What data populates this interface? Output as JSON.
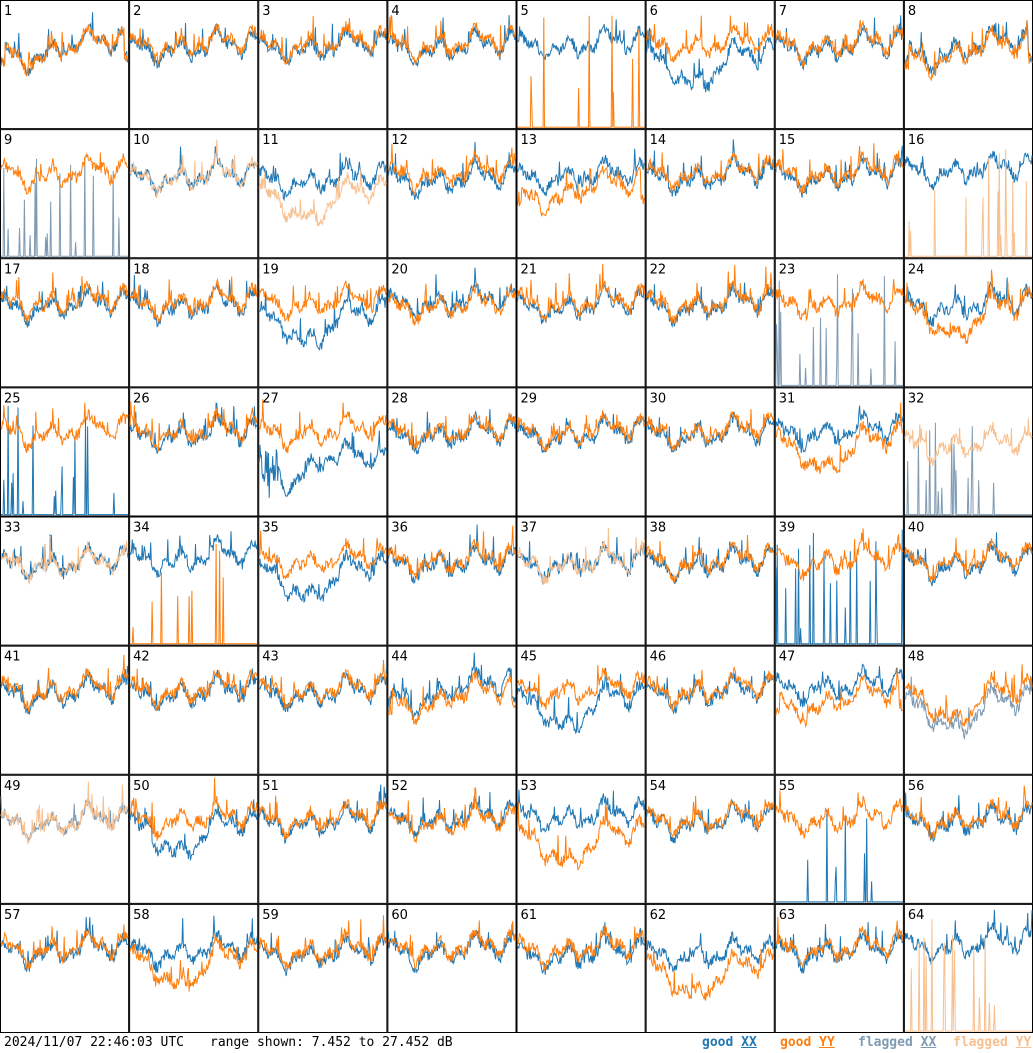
{
  "footer": {
    "timestamp": "2024/11/07 22:46:03 UTC",
    "range_text": "range shown: 7.452 to 27.452 dB"
  },
  "legend": [
    {
      "status": "good",
      "pol": "XX",
      "color": "#1f77b4"
    },
    {
      "status": "good",
      "pol": "YY",
      "color": "#ff7f0e"
    },
    {
      "status": "flagged",
      "pol": "XX",
      "color": "#7f9bb3"
    },
    {
      "status": "flagged",
      "pol": "YY",
      "color": "#f8c08f"
    }
  ],
  "chart_data": {
    "type": "line",
    "title": "",
    "xlabel": "",
    "ylabel": "",
    "ylim": [
      7.452,
      27.452
    ],
    "units": "dB",
    "grid": {
      "rows": 8,
      "cols": 8
    },
    "colors": {
      "good_XX": "#1f77b4",
      "good_YY": "#ff7f0e",
      "flagged_XX": "#7f9bb3",
      "flagged_YY": "#f8c08f"
    },
    "panels": [
      {
        "id": "1",
        "xx": "good",
        "yy": "good",
        "xx_level": 21,
        "yy_level": 21,
        "xx_mode": "dip",
        "yy_mode": "dip"
      },
      {
        "id": "2",
        "xx": "good",
        "yy": "good",
        "xx_level": 20.5,
        "yy_level": 21
      },
      {
        "id": "3",
        "xx": "good",
        "yy": "good",
        "xx_level": 20.5,
        "yy_level": 21
      },
      {
        "id": "4",
        "xx": "good",
        "yy": "good",
        "xx_level": 20.5,
        "yy_level": 21
      },
      {
        "id": "5",
        "xx": "good",
        "yy": "good",
        "xx_level": 21,
        "yy_level": 7.6,
        "yy_mode": "spikes"
      },
      {
        "id": "6",
        "xx": "good",
        "yy": "good",
        "xx_level": 19,
        "yy_level": 21,
        "xx_mode": "sag"
      },
      {
        "id": "7",
        "xx": "good",
        "yy": "good",
        "xx_level": 20.5,
        "yy_level": 21
      },
      {
        "id": "8",
        "xx": "good",
        "yy": "good",
        "xx_level": 21,
        "yy_level": 20.5,
        "xx_mode": "dip",
        "yy_mode": "dip"
      },
      {
        "id": "9",
        "xx": "flagged",
        "yy": "good",
        "xx_level": 7.6,
        "yy_level": 21,
        "xx_mode": "spikes"
      },
      {
        "id": "10",
        "xx": "good",
        "yy": "flagged",
        "xx_level": 20.5,
        "yy_level": 20.5
      },
      {
        "id": "11",
        "xx": "good",
        "yy": "flagged",
        "xx_level": 20,
        "yy_level": 18,
        "yy_mode": "sag"
      },
      {
        "id": "12",
        "xx": "good",
        "yy": "good",
        "xx_level": 20,
        "yy_level": 21
      },
      {
        "id": "13",
        "xx": "good",
        "yy": "good",
        "xx_level": 20.5,
        "yy_level": 19,
        "yy_mode": "dip"
      },
      {
        "id": "14",
        "xx": "good",
        "yy": "good",
        "xx_level": 20.5,
        "yy_level": 21
      },
      {
        "id": "15",
        "xx": "good",
        "yy": "good",
        "xx_level": 20.5,
        "yy_level": 21
      },
      {
        "id": "16",
        "xx": "good",
        "yy": "flagged",
        "xx_level": 21.5,
        "yy_level": 7.6,
        "yy_mode": "spikes"
      },
      {
        "id": "17",
        "xx": "good",
        "yy": "good",
        "xx_level": 20.5,
        "yy_level": 21
      },
      {
        "id": "18",
        "xx": "good",
        "yy": "good",
        "xx_level": 20.5,
        "yy_level": 21
      },
      {
        "id": "19",
        "xx": "good",
        "yy": "good",
        "xx_level": 19,
        "yy_level": 21,
        "xx_mode": "sag"
      },
      {
        "id": "20",
        "xx": "good",
        "yy": "good",
        "xx_level": 21,
        "yy_level": 20.5
      },
      {
        "id": "21",
        "xx": "good",
        "yy": "good",
        "xx_level": 20.5,
        "yy_level": 21
      },
      {
        "id": "22",
        "xx": "good",
        "yy": "good",
        "xx_level": 20.5,
        "yy_level": 21
      },
      {
        "id": "23",
        "xx": "flagged",
        "yy": "good",
        "xx_level": 7.6,
        "yy_level": 21,
        "xx_mode": "spikes"
      },
      {
        "id": "24",
        "xx": "good",
        "yy": "good",
        "xx_level": 20.5,
        "yy_level": 20,
        "yy_mode": "sag"
      },
      {
        "id": "25",
        "xx": "good",
        "yy": "good",
        "xx_level": 7.6,
        "yy_level": 21,
        "xx_mode": "spikes"
      },
      {
        "id": "26",
        "xx": "good",
        "yy": "good",
        "xx_level": 20.5,
        "yy_level": 21
      },
      {
        "id": "27",
        "xx": "good",
        "yy": "good",
        "xx_level": 18,
        "yy_level": 21,
        "xx_mode": "ramp"
      },
      {
        "id": "28",
        "xx": "good",
        "yy": "good",
        "xx_level": 20.5,
        "yy_level": 21
      },
      {
        "id": "29",
        "xx": "good",
        "yy": "good",
        "xx_level": 20.5,
        "yy_level": 21
      },
      {
        "id": "30",
        "xx": "good",
        "yy": "good",
        "xx_level": 20.5,
        "yy_level": 21
      },
      {
        "id": "31",
        "xx": "good",
        "yy": "good",
        "xx_level": 21,
        "yy_level": 19.5,
        "yy_mode": "sag"
      },
      {
        "id": "32",
        "xx": "flagged",
        "yy": "flagged",
        "xx_level": 7.6,
        "yy_level": 19,
        "xx_mode": "spikes"
      },
      {
        "id": "33",
        "xx": "good",
        "yy": "flagged",
        "xx_level": 20.5,
        "yy_level": 20.5
      },
      {
        "id": "34",
        "xx": "good",
        "yy": "good",
        "xx_level": 21.5,
        "yy_level": 7.6,
        "yy_mode": "spikes"
      },
      {
        "id": "35",
        "xx": "good",
        "yy": "good",
        "xx_level": 19.5,
        "yy_level": 21,
        "xx_mode": "sag"
      },
      {
        "id": "36",
        "xx": "good",
        "yy": "good",
        "xx_level": 20.5,
        "yy_level": 21
      },
      {
        "id": "37",
        "xx": "good",
        "yy": "flagged",
        "xx_level": 20.5,
        "yy_level": 20.5
      },
      {
        "id": "38",
        "xx": "good",
        "yy": "good",
        "xx_level": 20.5,
        "yy_level": 21
      },
      {
        "id": "39",
        "xx": "good",
        "yy": "good",
        "xx_level": 7.6,
        "yy_level": 21,
        "xx_mode": "spikes"
      },
      {
        "id": "40",
        "xx": "good",
        "yy": "good",
        "xx_level": 20.5,
        "yy_level": 21
      },
      {
        "id": "41",
        "xx": "good",
        "yy": "good",
        "xx_level": 20.5,
        "yy_level": 21
      },
      {
        "id": "42",
        "xx": "good",
        "yy": "good",
        "xx_level": 20.5,
        "yy_level": 21
      },
      {
        "id": "43",
        "xx": "good",
        "yy": "good",
        "xx_level": 20.5,
        "yy_level": 21
      },
      {
        "id": "44",
        "xx": "good",
        "yy": "good",
        "xx_level": 21.5,
        "yy_level": 20.5,
        "xx_mode": "dip",
        "yy_mode": "dip"
      },
      {
        "id": "45",
        "xx": "good",
        "yy": "good",
        "xx_level": 19.5,
        "yy_level": 21,
        "xx_mode": "sag"
      },
      {
        "id": "46",
        "xx": "good",
        "yy": "good",
        "xx_level": 20.5,
        "yy_level": 21
      },
      {
        "id": "47",
        "xx": "good",
        "yy": "good",
        "xx_level": 21.5,
        "yy_level": 20,
        "yy_mode": "dip"
      },
      {
        "id": "48",
        "xx": "flagged",
        "yy": "good",
        "xx_level": 19,
        "yy_level": 20.5,
        "xx_mode": "sag",
        "yy_mode": "sag"
      },
      {
        "id": "49",
        "xx": "flagged",
        "yy": "flagged",
        "xx_level": 20.5,
        "yy_level": 20.5
      },
      {
        "id": "50",
        "xx": "good",
        "yy": "good",
        "xx_level": 20,
        "yy_level": 21,
        "xx_mode": "sag"
      },
      {
        "id": "51",
        "xx": "good",
        "yy": "good",
        "xx_level": 20.5,
        "yy_level": 21
      },
      {
        "id": "52",
        "xx": "good",
        "yy": "good",
        "xx_level": 21,
        "yy_level": 20.5
      },
      {
        "id": "53",
        "xx": "good",
        "yy": "good",
        "xx_level": 21.5,
        "yy_level": 18.5,
        "yy_mode": "sag"
      },
      {
        "id": "54",
        "xx": "good",
        "yy": "good",
        "xx_level": 20.5,
        "yy_level": 21
      },
      {
        "id": "55",
        "xx": "good",
        "yy": "good",
        "xx_level": 7.6,
        "yy_level": 21,
        "xx_mode": "spikes"
      },
      {
        "id": "56",
        "xx": "good",
        "yy": "good",
        "xx_level": 20.5,
        "yy_level": 21
      },
      {
        "id": "57",
        "xx": "good",
        "yy": "good",
        "xx_level": 20.5,
        "yy_level": 21
      },
      {
        "id": "58",
        "xx": "good",
        "yy": "good",
        "xx_level": 20.5,
        "yy_level": 19.5,
        "yy_mode": "sag"
      },
      {
        "id": "59",
        "xx": "good",
        "yy": "good",
        "xx_level": 20,
        "yy_level": 20.5
      },
      {
        "id": "60",
        "xx": "good",
        "yy": "good",
        "xx_level": 20.5,
        "yy_level": 21
      },
      {
        "id": "61",
        "xx": "good",
        "yy": "good",
        "xx_level": 20,
        "yy_level": 21
      },
      {
        "id": "62",
        "xx": "good",
        "yy": "good",
        "xx_level": 20,
        "yy_level": 18,
        "yy_mode": "sag"
      },
      {
        "id": "63",
        "xx": "good",
        "yy": "good",
        "xx_level": 20.5,
        "yy_level": 21
      },
      {
        "id": "64",
        "xx": "good",
        "yy": "flagged",
        "xx_level": 21.5,
        "yy_level": 7.6,
        "yy_mode": "spikes"
      }
    ]
  }
}
